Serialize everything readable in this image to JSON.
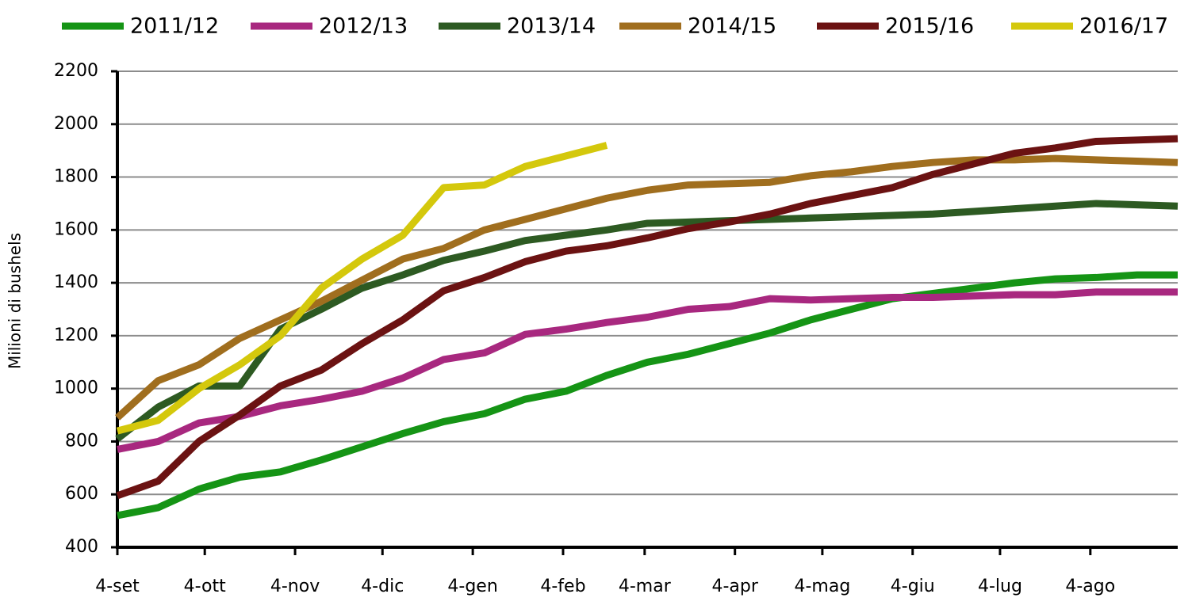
{
  "chart_data": {
    "type": "line",
    "y_label": "Milioni di bushels",
    "x": [
      0,
      14,
      28,
      42,
      56,
      70,
      84,
      98,
      112,
      126,
      140,
      154,
      168,
      182,
      196,
      210,
      224,
      238,
      252,
      266,
      280,
      294,
      308,
      322,
      336,
      350,
      364
    ],
    "xlim": [
      0,
      364
    ],
    "xticks": [
      {
        "value": 0,
        "label": "4-set"
      },
      {
        "value": 30,
        "label": "4-ott"
      },
      {
        "value": 61,
        "label": "4-nov"
      },
      {
        "value": 91,
        "label": "4-dic"
      },
      {
        "value": 122,
        "label": "4-gen"
      },
      {
        "value": 153,
        "label": "4-feb"
      },
      {
        "value": 181,
        "label": "4-mar"
      },
      {
        "value": 212,
        "label": "4-apr"
      },
      {
        "value": 242,
        "label": "4-mag"
      },
      {
        "value": 273,
        "label": "4-giu"
      },
      {
        "value": 303,
        "label": "4-lug"
      },
      {
        "value": 334,
        "label": "4-ago"
      }
    ],
    "ylim": [
      400,
      2200
    ],
    "yticks": [
      400,
      600,
      800,
      1000,
      1200,
      1400,
      1600,
      1800,
      2000,
      2200
    ],
    "grid": true,
    "legend": "top",
    "series": [
      {
        "name": "2011/12",
        "color": "#159415",
        "values": [
          520,
          550,
          620,
          665,
          685,
          730,
          780,
          830,
          875,
          905,
          960,
          990,
          1050,
          1100,
          1130,
          1170,
          1210,
          1260,
          1300,
          1340,
          1360,
          1380,
          1400,
          1415,
          1420,
          1430,
          1430
        ]
      },
      {
        "name": "2012/13",
        "color": "#a8287f",
        "values": [
          770,
          800,
          870,
          895,
          935,
          960,
          990,
          1040,
          1110,
          1135,
          1205,
          1225,
          1250,
          1270,
          1300,
          1310,
          1340,
          1335,
          1340,
          1345,
          1345,
          1350,
          1355,
          1355,
          1365,
          1365,
          1365
        ]
      },
      {
        "name": "2013/14",
        "color": "#2d5a22",
        "values": [
          810,
          930,
          1010,
          1010,
          1225,
          1300,
          1380,
          1430,
          1485,
          1520,
          1560,
          1580,
          1600,
          1625,
          1630,
          1635,
          1640,
          1645,
          1650,
          1655,
          1660,
          1670,
          1680,
          1690,
          1700,
          1695,
          1690
        ]
      },
      {
        "name": "2014/15",
        "color": "#a06e1e",
        "values": [
          890,
          1030,
          1090,
          1190,
          1260,
          1330,
          1410,
          1490,
          1530,
          1600,
          1640,
          1680,
          1720,
          1750,
          1770,
          1775,
          1780,
          1805,
          1820,
          1840,
          1855,
          1865,
          1865,
          1870,
          1865,
          1860,
          1855
        ]
      },
      {
        "name": "2015/16",
        "color": "#6b1212",
        "values": [
          595,
          650,
          800,
          900,
          1010,
          1070,
          1170,
          1260,
          1370,
          1420,
          1480,
          1520,
          1540,
          1570,
          1605,
          1630,
          1660,
          1700,
          1730,
          1760,
          1810,
          1850,
          1890,
          1910,
          1935,
          1940,
          1945
        ]
      },
      {
        "name": "2016/17",
        "color": "#d4c80c",
        "values": [
          840,
          880,
          1000,
          1090,
          1200,
          1380,
          1490,
          1580,
          1760,
          1770,
          1840,
          1880,
          1920,
          null,
          null,
          null,
          null,
          null,
          null,
          null,
          null,
          null,
          null,
          null,
          null,
          null,
          null
        ]
      }
    ]
  }
}
